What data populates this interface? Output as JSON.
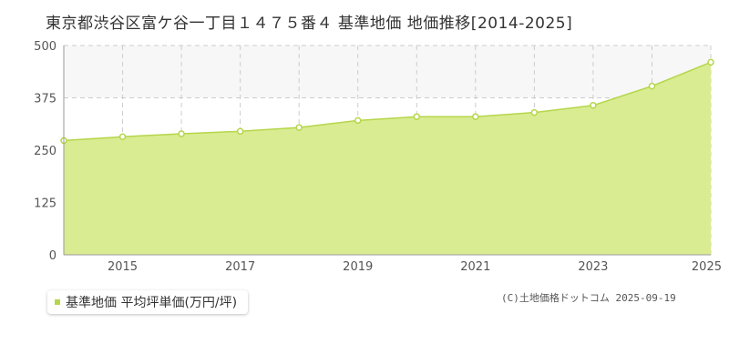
{
  "title": "東京都渋谷区富ケ谷一丁目１４７５番４ 基準地価 地価推移[2014-2025]",
  "legend": {
    "label": "基準地価 平均坪単価(万円/坪)"
  },
  "copyright": "(C)土地価格ドットコム 2025-09-19",
  "colors": {
    "fill": "#d9ec92",
    "line": "#b5d64a",
    "grid": "#cccccc",
    "marker": "#ffffff",
    "band": "#f7f7f7"
  },
  "chart_data": {
    "type": "area",
    "x": [
      2014,
      2015,
      2016,
      2017,
      2018,
      2019,
      2020,
      2021,
      2022,
      2023,
      2024,
      2025
    ],
    "series": [
      {
        "name": "基準地価 平均坪単価(万円/坪)",
        "values": [
          273,
          282,
          289,
          295,
          304,
          321,
          330,
          330,
          340,
          357,
          403,
          460
        ]
      }
    ],
    "x_tick_labels": [
      "2015",
      "2017",
      "2019",
      "2021",
      "2023",
      "2025"
    ],
    "y_ticks": [
      0,
      125,
      250,
      375,
      500
    ],
    "ylim": [
      0,
      500
    ],
    "xlim": [
      2014,
      2025
    ],
    "grid": true,
    "legend_position": "bottom-left"
  }
}
